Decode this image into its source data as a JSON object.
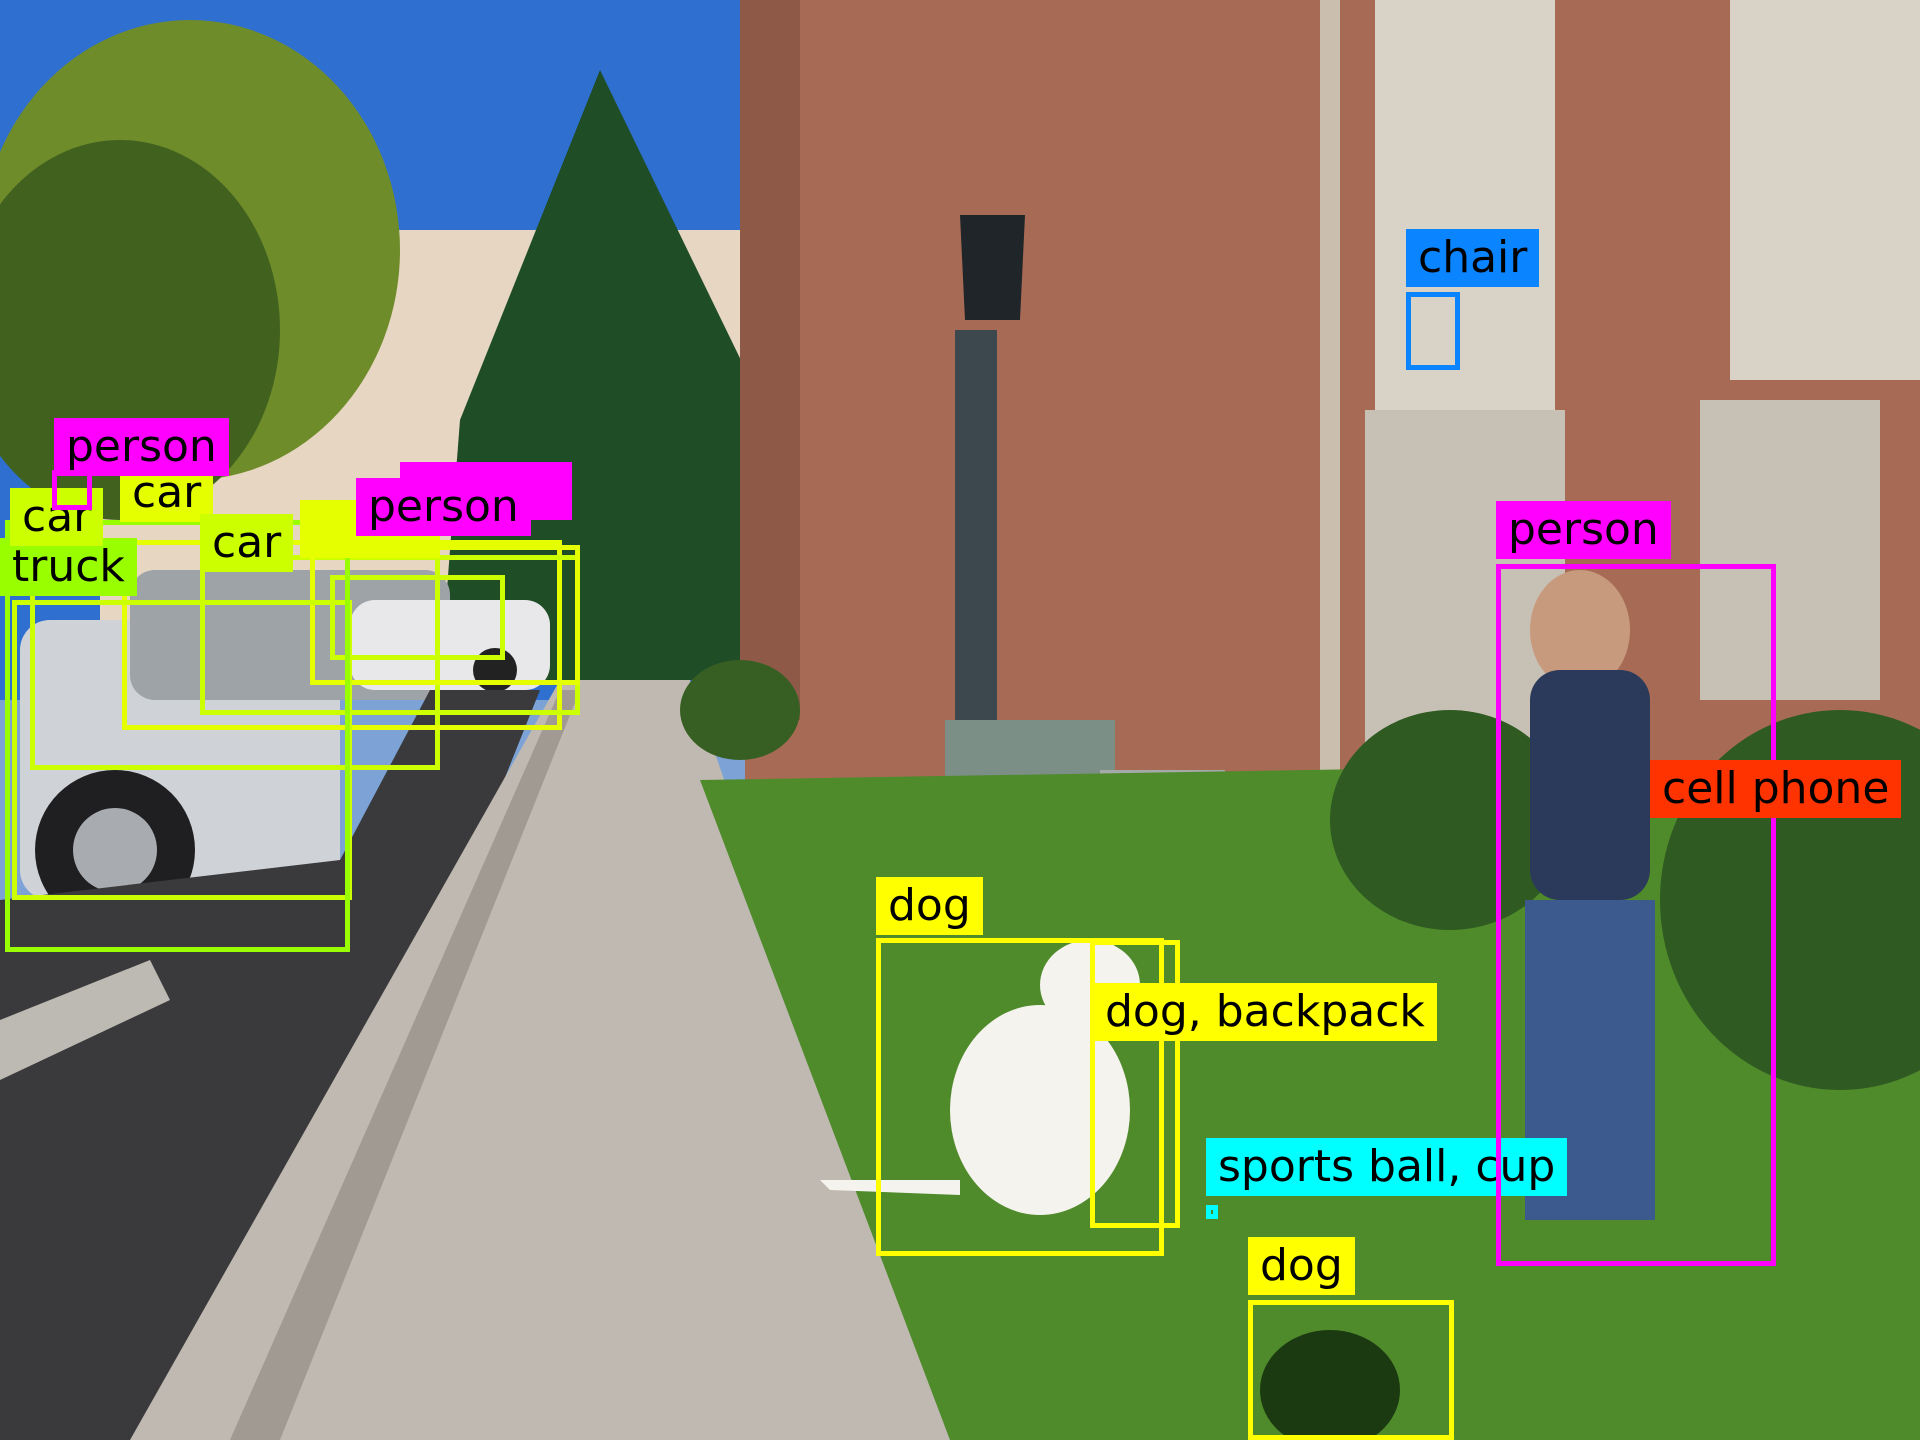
{
  "image": {
    "description_tag": "object-detection-overlay",
    "colors": {
      "yellow": "#ffff00",
      "lime": "#ccff00",
      "green": "#99ff00",
      "magenta": "#ff00ff",
      "blue": "#0a84ff",
      "red": "#ff3300",
      "cyan": "#00ffff"
    }
  },
  "detections": [
    {
      "id": "dog-1",
      "label": "dog",
      "color": "#ffff00"
    },
    {
      "id": "dog-backpack",
      "label": "dog, backpack",
      "color": "#ffff00"
    },
    {
      "id": "sports-ball-cup",
      "label": "sports ball, cup",
      "color": "#00ffff"
    },
    {
      "id": "dog-2",
      "label": "dog",
      "color": "#ffff00"
    },
    {
      "id": "person-right",
      "label": "person",
      "color": "#ff00ff"
    },
    {
      "id": "cell-phone",
      "label": "cell phone",
      "color": "#ff3300"
    },
    {
      "id": "chair",
      "label": "chair",
      "color": "#0a84ff"
    },
    {
      "id": "person-left-1",
      "label": "person",
      "color": "#ff00ff"
    },
    {
      "id": "person-left-2",
      "label": "person",
      "color": "#ff00ff"
    },
    {
      "id": "car-1",
      "label": "car",
      "color": "#ccff00"
    },
    {
      "id": "car-2",
      "label": "car",
      "color": "#ccff00"
    },
    {
      "id": "car-3",
      "label": "car",
      "color": "#ccff00"
    },
    {
      "id": "truck",
      "label": "truck",
      "color": "#99ff00"
    }
  ]
}
